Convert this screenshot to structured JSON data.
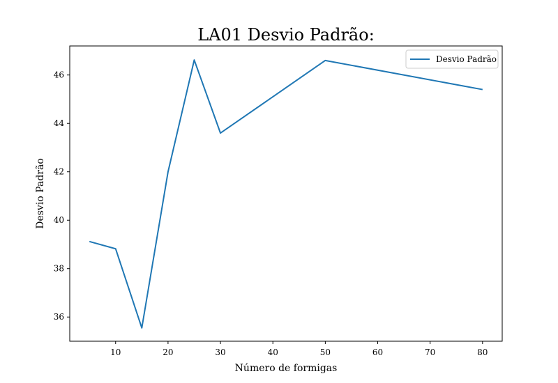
{
  "chart_data": {
    "type": "line",
    "title": "LA01 Desvio Padrão:",
    "xlabel": "Número de formigas",
    "ylabel": "Desvio Padrão",
    "x_ticks": [
      10,
      20,
      30,
      40,
      50,
      60,
      70,
      80
    ],
    "y_ticks": [
      36,
      38,
      40,
      42,
      44,
      46
    ],
    "xlim": [
      1.25,
      83.75
    ],
    "ylim": [
      35.0,
      47.2
    ],
    "grid": false,
    "legend_position": "upper right",
    "series": [
      {
        "name": "Desvio Padrão",
        "color": "#1f77b4",
        "x": [
          5,
          10,
          15,
          20,
          25,
          30,
          50,
          80
        ],
        "y": [
          39.12,
          38.82,
          35.55,
          42.0,
          46.62,
          43.6,
          46.6,
          45.4
        ]
      }
    ]
  }
}
